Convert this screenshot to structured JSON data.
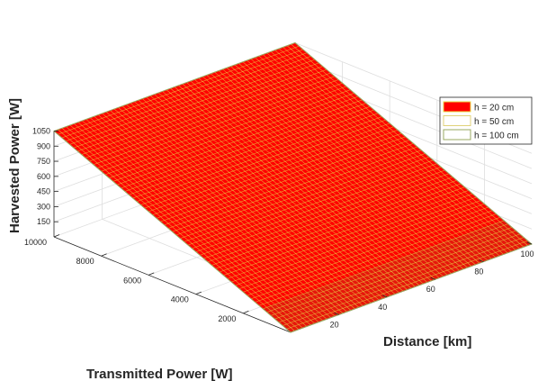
{
  "chart_data": {
    "type": "surface",
    "title": "",
    "xlabel": "Transmitted Power [W]",
    "ylabel": "Distance [km]",
    "zlabel": "Harvested Power [W]",
    "xlim": [
      0,
      10000
    ],
    "ylim": [
      0,
      100
    ],
    "zlim": [
      0,
      1050
    ],
    "x_ticks": [
      "2000",
      "4000",
      "6000",
      "8000",
      "10000"
    ],
    "y_ticks": [
      "20",
      "40",
      "60",
      "80",
      "100"
    ],
    "z_ticks": [
      "150",
      "300",
      "450",
      "600",
      "750",
      "900",
      "1050"
    ],
    "grid": true,
    "legend_position": "top-right",
    "series": [
      {
        "name": "h = 20 cm",
        "face_color": "#ff0000",
        "edge_color": "#e8e04a",
        "surface": {
          "x": [
            0,
            10000
          ],
          "y": [
            0,
            100
          ],
          "z": [
            [
              0,
              0
            ],
            [
              1050,
              1050
            ]
          ]
        }
      },
      {
        "name": "h = 50 cm",
        "face_color": "#ffffff",
        "edge_color": "#e0d27a",
        "surface": {
          "x": [
            0,
            10000
          ],
          "y": [
            0,
            100
          ],
          "z": [
            [
              0,
              0
            ],
            [
              1050,
              1050
            ]
          ]
        }
      },
      {
        "name": "h = 100 cm",
        "face_color": "#ffffff",
        "edge_color": "#9aa860",
        "surface": {
          "x": [
            0,
            10000
          ],
          "y": [
            0,
            100
          ],
          "z": [
            [
              0,
              0
            ],
            [
              1050,
              1050
            ]
          ]
        }
      }
    ]
  }
}
